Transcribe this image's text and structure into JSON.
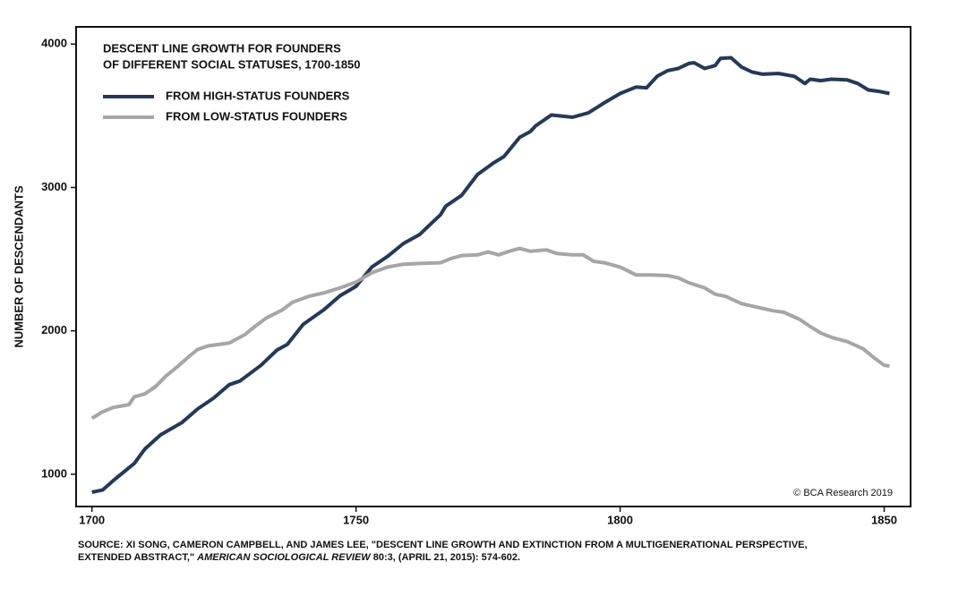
{
  "chart_data": {
    "type": "line",
    "title": [
      "DESCENT LINE GROWTH FOR FOUNDERS",
      "OF DIFFERENT SOCIAL STATUSES, 1700-1850"
    ],
    "y_label": "NUMBER OF DESCENDANTS",
    "copyright": "© BCA Research 2019",
    "source": [
      "SOURCE: XI SONG, CAMERON CAMPBELL, AND JAMES LEE, \"DESCENT LINE GROWTH AND EXTINCTION FROM A MULTIGENERATIONAL PERSPECTIVE,",
      "EXTENDED ABSTRACT,\" ",
      "AMERICAN SOCIOLOGICAL REVIEW",
      " 80:3, (APRIL 21, 2015): 574-602."
    ],
    "xlim": [
      1697,
      1855
    ],
    "xticks": [
      1700,
      1750,
      1800,
      1850
    ],
    "ylim": [
      775,
      4120
    ],
    "yticks": [
      1000,
      2000,
      3000,
      4000
    ],
    "series": [
      {
        "name": "FROM HIGH-STATUS FOUNDERS",
        "color": "#24395a",
        "x": [
          1700,
          1702,
          1704,
          1708,
          1710,
          1713,
          1717,
          1720,
          1723,
          1726,
          1728,
          1732,
          1735,
          1737,
          1740,
          1744,
          1747,
          1750,
          1753,
          1756,
          1759,
          1762,
          1766,
          1767,
          1770,
          1773,
          1776,
          1778,
          1781,
          1783,
          1784,
          1787,
          1791,
          1794,
          1797,
          1800,
          1803,
          1805,
          1807,
          1809,
          1811,
          1813,
          1814,
          1816,
          1818,
          1819,
          1821,
          1823,
          1825,
          1827,
          1830,
          1833,
          1835,
          1836,
          1838,
          1840,
          1843,
          1845,
          1847,
          1849,
          1851
        ],
        "values": [
          875,
          890,
          955,
          1075,
          1175,
          1275,
          1360,
          1455,
          1530,
          1625,
          1650,
          1760,
          1865,
          1905,
          2045,
          2150,
          2245,
          2310,
          2445,
          2520,
          2610,
          2670,
          2810,
          2870,
          2945,
          3090,
          3170,
          3215,
          3350,
          3390,
          3430,
          3505,
          3490,
          3520,
          3590,
          3655,
          3700,
          3695,
          3775,
          3815,
          3830,
          3865,
          3870,
          3830,
          3850,
          3900,
          3905,
          3840,
          3805,
          3790,
          3795,
          3775,
          3725,
          3755,
          3745,
          3755,
          3750,
          3725,
          3680,
          3670,
          3655
        ]
      },
      {
        "name": "FROM LOW-STATUS FOUNDERS",
        "color": "#a6a6a6",
        "x": [
          1700,
          1702,
          1704,
          1707,
          1708,
          1710,
          1712,
          1714,
          1716,
          1718,
          1720,
          1722,
          1726,
          1729,
          1731,
          1733,
          1736,
          1738,
          1741,
          1744,
          1747,
          1750,
          1753,
          1756,
          1759,
          1762,
          1766,
          1768,
          1770,
          1773,
          1775,
          1777,
          1779,
          1781,
          1783,
          1786,
          1788,
          1791,
          1793,
          1795,
          1797,
          1800,
          1803,
          1806,
          1809,
          1811,
          1813,
          1816,
          1818,
          1820,
          1823,
          1826,
          1829,
          1831,
          1834,
          1836,
          1838,
          1840,
          1843,
          1846,
          1848,
          1850,
          1851
        ],
        "values": [
          1390,
          1435,
          1465,
          1485,
          1540,
          1560,
          1610,
          1685,
          1745,
          1810,
          1870,
          1895,
          1915,
          1975,
          2035,
          2090,
          2145,
          2200,
          2240,
          2265,
          2300,
          2340,
          2405,
          2445,
          2465,
          2470,
          2475,
          2505,
          2525,
          2530,
          2550,
          2530,
          2555,
          2575,
          2555,
          2565,
          2540,
          2530,
          2530,
          2485,
          2475,
          2445,
          2390,
          2390,
          2385,
          2370,
          2335,
          2300,
          2255,
          2240,
          2190,
          2165,
          2140,
          2130,
          2080,
          2030,
          1985,
          1955,
          1925,
          1875,
          1815,
          1760,
          1755
        ]
      }
    ]
  }
}
